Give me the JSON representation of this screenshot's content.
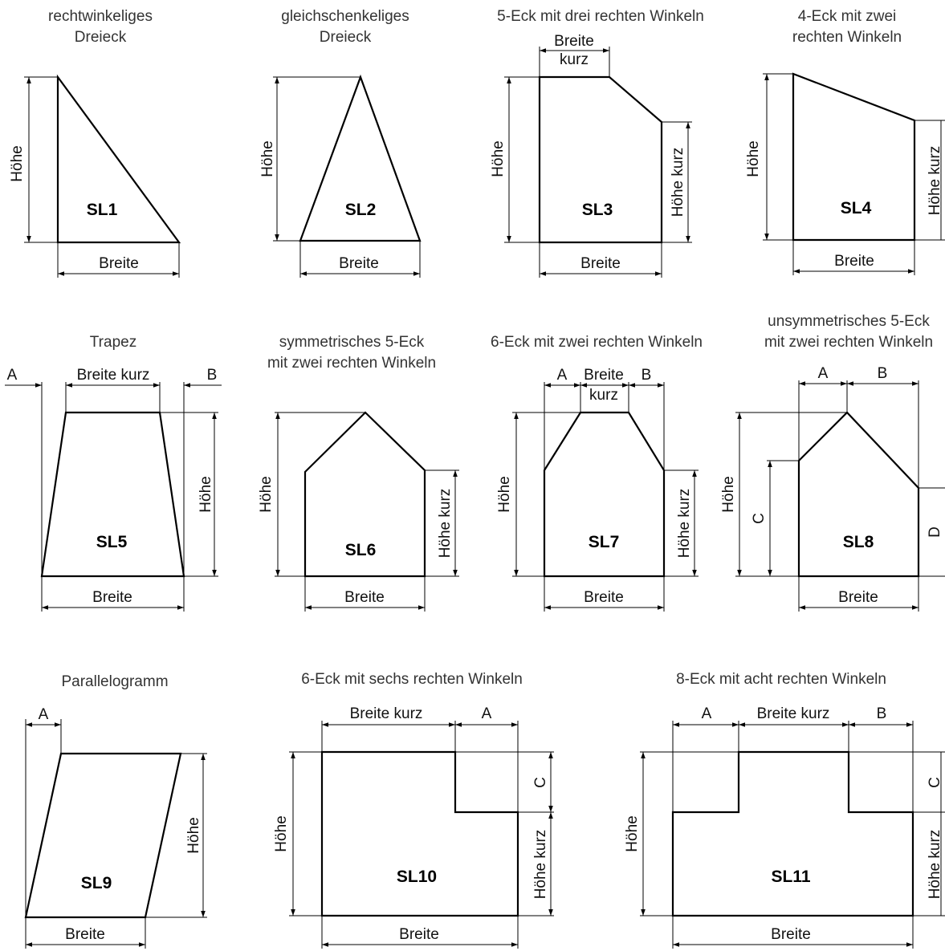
{
  "shapes": [
    {
      "id": "sl1",
      "code": "SL1",
      "title": [
        "rechtwinkeliges",
        "Dreieck"
      ],
      "labels": {
        "hoehe": "Höhe",
        "breite": "Breite"
      }
    },
    {
      "id": "sl2",
      "code": "SL2",
      "title": [
        "gleichschenkeliges",
        "Dreieck"
      ],
      "labels": {
        "hoehe": "Höhe",
        "breite": "Breite"
      }
    },
    {
      "id": "sl3",
      "code": "SL3",
      "title": [
        "5-Eck mit drei rechten Winkeln"
      ],
      "labels": {
        "breite_kurz_1": "Breite",
        "breite_kurz_2": "kurz",
        "hoehe": "Höhe",
        "hoehe_kurz": "Höhe kurz",
        "breite": "Breite"
      }
    },
    {
      "id": "sl4",
      "code": "SL4",
      "title": [
        "4-Eck mit zwei",
        "rechten Winkeln"
      ],
      "labels": {
        "hoehe": "Höhe",
        "hoehe_kurz": "Höhe kurz",
        "breite": "Breite"
      }
    },
    {
      "id": "sl5",
      "code": "SL5",
      "title": [
        "Trapez"
      ],
      "labels": {
        "a": "A",
        "b": "B",
        "breite_kurz": "Breite kurz",
        "hoehe": "Höhe",
        "breite": "Breite"
      }
    },
    {
      "id": "sl6",
      "code": "SL6",
      "title": [
        "symmetrisches 5-Eck",
        "mit zwei rechten Winkeln"
      ],
      "labels": {
        "hoehe": "Höhe",
        "hoehe_kurz": "Höhe kurz",
        "breite": "Breite"
      }
    },
    {
      "id": "sl7",
      "code": "SL7",
      "title": [
        "6-Eck mit zwei rechten Winkeln"
      ],
      "labels": {
        "a": "A",
        "b": "B",
        "breite_kurz_1": "Breite",
        "breite_kurz_2": "kurz",
        "hoehe": "Höhe",
        "hoehe_kurz": "Höhe kurz",
        "breite": "Breite"
      }
    },
    {
      "id": "sl8",
      "code": "SL8",
      "title": [
        "unsymmetrisches 5-Eck",
        "mit zwei rechten Winkeln"
      ],
      "labels": {
        "a": "A",
        "b": "B",
        "c": "C",
        "d": "D",
        "hoehe": "Höhe",
        "breite": "Breite"
      }
    },
    {
      "id": "sl9",
      "code": "SL9",
      "title": [
        "Parallelogramm"
      ],
      "labels": {
        "a": "A",
        "hoehe": "Höhe",
        "breite": "Breite"
      }
    },
    {
      "id": "sl10",
      "code": "SL10",
      "title": [
        "6-Eck mit sechs rechten Winkeln"
      ],
      "labels": {
        "breite_kurz": "Breite kurz",
        "a": "A",
        "c": "C",
        "hoehe": "Höhe",
        "hoehe_kurz": "Höhe kurz",
        "breite": "Breite"
      }
    },
    {
      "id": "sl11",
      "code": "SL11",
      "title": [
        "8-Eck mit acht rechten Winkeln"
      ],
      "labels": {
        "a": "A",
        "breite_kurz": "Breite kurz",
        "b": "B",
        "c": "C",
        "hoehe": "Höhe",
        "hoehe_kurz": "Höhe kurz",
        "breite": "Breite"
      }
    }
  ]
}
